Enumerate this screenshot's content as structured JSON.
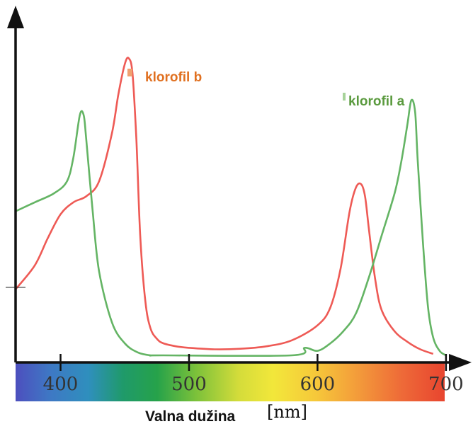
{
  "chart_data": {
    "type": "line",
    "xlabel": "Valna dužina",
    "xunit": "[nm]",
    "ylabel": "",
    "xlim": [
      365,
      710
    ],
    "ylim": [
      0,
      1
    ],
    "ticks": [
      400,
      500,
      600,
      700
    ],
    "tick_labels": [
      "400",
      "500",
      "600",
      "700"
    ],
    "grid": false,
    "background_spectrum": true,
    "series": [
      {
        "name": "klorofil b",
        "color": "#ee5a55",
        "label_color": "#e07020",
        "x": [
          365,
          380,
          390,
          400,
          410,
          420,
          430,
          440,
          445,
          450,
          453,
          456,
          459,
          462,
          466,
          470,
          475,
          480,
          490,
          500,
          520,
          540,
          560,
          580,
          600,
          610,
          618,
          625,
          630,
          634,
          637,
          640,
          645,
          650,
          660,
          670,
          680,
          690
        ],
        "values": [
          0.22,
          0.3,
          0.39,
          0.47,
          0.51,
          0.53,
          0.58,
          0.74,
          0.87,
          0.97,
          0.99,
          0.94,
          0.72,
          0.4,
          0.18,
          0.09,
          0.055,
          0.04,
          0.03,
          0.025,
          0.02,
          0.022,
          0.03,
          0.05,
          0.1,
          0.16,
          0.29,
          0.48,
          0.56,
          0.57,
          0.53,
          0.42,
          0.25,
          0.15,
          0.08,
          0.045,
          0.02,
          0.005
        ],
        "label": "klorofil b"
      },
      {
        "name": "klorofil a",
        "color": "#64b464",
        "label_color": "#5a9a3e",
        "x": [
          365,
          380,
          395,
          405,
          410,
          415,
          418,
          420,
          425,
          430,
          440,
          450,
          460,
          470,
          480,
          580,
          590,
          600,
          610,
          620,
          630,
          640,
          650,
          660,
          665,
          670,
          673,
          676,
          678,
          682,
          686,
          690,
          695,
          700
        ],
        "values": [
          0.48,
          0.51,
          0.54,
          0.58,
          0.66,
          0.8,
          0.8,
          0.72,
          0.48,
          0.28,
          0.11,
          0.04,
          0.01,
          0.0,
          0.0,
          0.0,
          0.025,
          0.015,
          0.04,
          0.08,
          0.14,
          0.26,
          0.4,
          0.54,
          0.64,
          0.77,
          0.85,
          0.81,
          0.65,
          0.38,
          0.16,
          0.06,
          0.015,
          0.0
        ],
        "label": "klorofil a"
      }
    ]
  }
}
